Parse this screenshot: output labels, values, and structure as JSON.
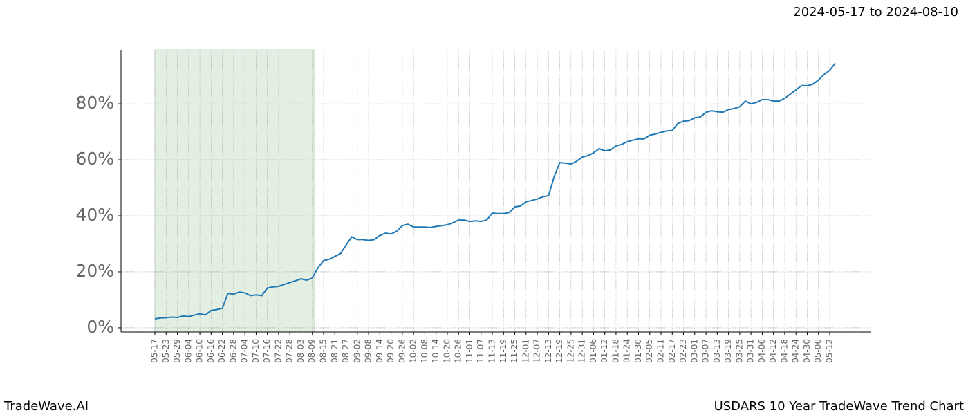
{
  "header": {
    "date_range": "2024-05-17 to 2024-08-10"
  },
  "footer": {
    "brand": "TradeWave.AI",
    "title": "USDARS 10 Year TradeWave Trend Chart"
  },
  "chart_data": {
    "type": "line",
    "categories": [
      "05-17",
      null,
      "05-23",
      null,
      "05-29",
      null,
      "06-04",
      null,
      "06-10",
      null,
      "06-16",
      null,
      "06-22",
      null,
      "06-28",
      null,
      "07-04",
      null,
      "07-10",
      null,
      "07-16",
      null,
      "07-22",
      null,
      "07-28",
      null,
      "08-03",
      null,
      "08-09",
      null,
      "08-15",
      null,
      "08-21",
      null,
      "08-27",
      null,
      "09-02",
      null,
      "09-08",
      null,
      "09-14",
      null,
      "09-20",
      null,
      "09-26",
      null,
      "10-02",
      null,
      "10-08",
      null,
      "10-14",
      null,
      "10-20",
      null,
      "10-26",
      null,
      "11-01",
      null,
      "11-07",
      null,
      "11-13",
      null,
      "11-19",
      null,
      "11-25",
      null,
      "12-01",
      null,
      "12-07",
      null,
      "12-13",
      null,
      "12-19",
      null,
      "12-25",
      null,
      "12-31",
      null,
      "01-06",
      null,
      "01-12",
      null,
      "01-18",
      null,
      "01-24",
      null,
      "01-30",
      null,
      "02-05",
      null,
      "02-11",
      null,
      "02-17",
      null,
      "02-23",
      null,
      "03-01",
      null,
      "03-07",
      null,
      "03-13",
      null,
      "03-19",
      null,
      "03-25",
      null,
      "03-31",
      null,
      "04-06",
      null,
      "04-12",
      null,
      "04-18",
      null,
      "04-24",
      null,
      "04-30",
      null,
      "05-06",
      null,
      "05-12",
      null
    ],
    "values": [
      3.2,
      3.5,
      3.6,
      3.8,
      3.7,
      4.2,
      4.0,
      4.5,
      5.0,
      4.6,
      6.2,
      6.5,
      7.0,
      12.3,
      12.0,
      12.8,
      12.5,
      11.5,
      11.8,
      11.5,
      14.2,
      14.6,
      14.8,
      15.5,
      16.2,
      16.8,
      17.5,
      17.0,
      17.8,
      21.5,
      24.0,
      24.5,
      25.5,
      26.5,
      29.5,
      32.5,
      31.5,
      31.5,
      31.2,
      31.5,
      33.0,
      33.8,
      33.5,
      34.5,
      36.5,
      37.0,
      36.0,
      36.0,
      36.0,
      35.8,
      36.2,
      36.5,
      36.8,
      37.5,
      38.5,
      38.5,
      38.0,
      38.2,
      38.0,
      38.5,
      41.0,
      40.8,
      40.8,
      41.2,
      43.2,
      43.5,
      45.0,
      45.5,
      46.0,
      46.8,
      47.2,
      54.0,
      59.0,
      58.8,
      58.5,
      59.5,
      61.0,
      61.5,
      62.5,
      64.0,
      63.2,
      63.5,
      65.0,
      65.5,
      66.5,
      67.0,
      67.5,
      67.5,
      68.8,
      69.2,
      69.8,
      70.3,
      70.5,
      73.0,
      73.8,
      74.0,
      75.0,
      75.3,
      77.0,
      77.5,
      77.2,
      77.0,
      78.0,
      78.3,
      79.0,
      81.0,
      80.0,
      80.5,
      81.5,
      81.5,
      81.0,
      81.0,
      82.0,
      83.5,
      85.0,
      86.5,
      86.5,
      87.0,
      88.5,
      90.5,
      92.0,
      94.5
    ],
    "color": "#1f77b4",
    "highlight_range": [
      0,
      28.3
    ],
    "highlight_color": "#e3efe3",
    "ylim": [
      -1.5,
      99.3
    ],
    "yticks": [
      {
        "value": 0,
        "label": "0%"
      },
      {
        "value": 20,
        "label": "20%"
      },
      {
        "value": 40,
        "label": "40%"
      },
      {
        "value": 60,
        "label": "60%"
      },
      {
        "value": 80,
        "label": "80%"
      }
    ],
    "grid": true
  }
}
